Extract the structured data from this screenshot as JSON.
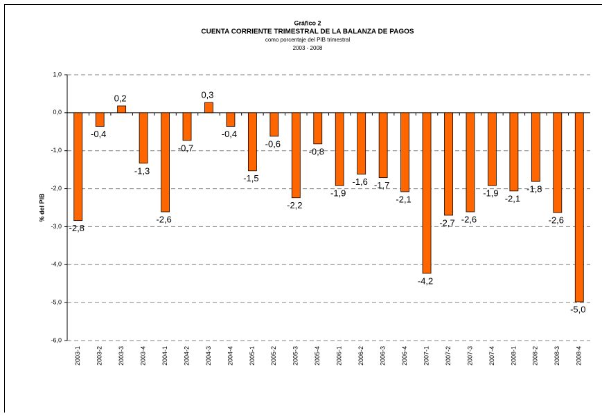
{
  "chart_data": {
    "type": "bar",
    "title": "Gráfico 2",
    "subtitle": "CUENTA CORRIENTE TRIMESTRAL DE LA BALANZA DE PAGOS",
    "subtitle2": "como porcentaje del PIB  trimestral",
    "subtitle3": "2003 - 2008",
    "y_label": "% del PIB",
    "categories": [
      "2003-1",
      "2003-2",
      "2003-3",
      "2003-4",
      "2004-1",
      "2004-2",
      "2004-3",
      "2004-4",
      "2005-1",
      "2005-2",
      "2005-3",
      "2005-4",
      "2006-1",
      "2006-2",
      "2006-3",
      "2006-4",
      "2007-1",
      "2007-2",
      "2007-3",
      "2007-4",
      "2008-1",
      "2008-2",
      "2008-3",
      "2008-4"
    ],
    "values": [
      -2.84,
      -0.36,
      0.18,
      -1.33,
      -2.61,
      -0.73,
      0.27,
      -0.36,
      -1.53,
      -0.62,
      -2.24,
      -0.82,
      -1.92,
      -1.62,
      -1.71,
      -2.08,
      -4.23,
      -2.7,
      -2.61,
      -1.92,
      -2.06,
      -1.81,
      -2.63,
      -4.98
    ],
    "value_labels": [
      "-2,8",
      "-0,4",
      "0,2",
      "-1,3",
      "-2,6",
      "-0,7",
      "0,3",
      "-0,4",
      "-1,5",
      "-0,6",
      "-2,2",
      "-0,8",
      "-1,9",
      "-1,6",
      "-1,7",
      "-2,1",
      "-4,2",
      "-2,7",
      "-2,6",
      "-1,9",
      "-2,1",
      "-1,8",
      "-2,6",
      "-5,0"
    ],
    "color": "#ff6600",
    "ylim": [
      -6,
      1
    ],
    "yticks": [
      {
        "value": 1,
        "label": "1,0"
      },
      {
        "value": 0,
        "label": "0,0"
      },
      {
        "value": -1,
        "label": "-1,0"
      },
      {
        "value": -2,
        "label": "-2,0"
      },
      {
        "value": -3,
        "label": "-3,0"
      },
      {
        "value": -4,
        "label": "-4,0"
      },
      {
        "value": -5,
        "label": "-5,0"
      },
      {
        "value": -6,
        "label": "-6,0"
      }
    ],
    "grid": true
  }
}
